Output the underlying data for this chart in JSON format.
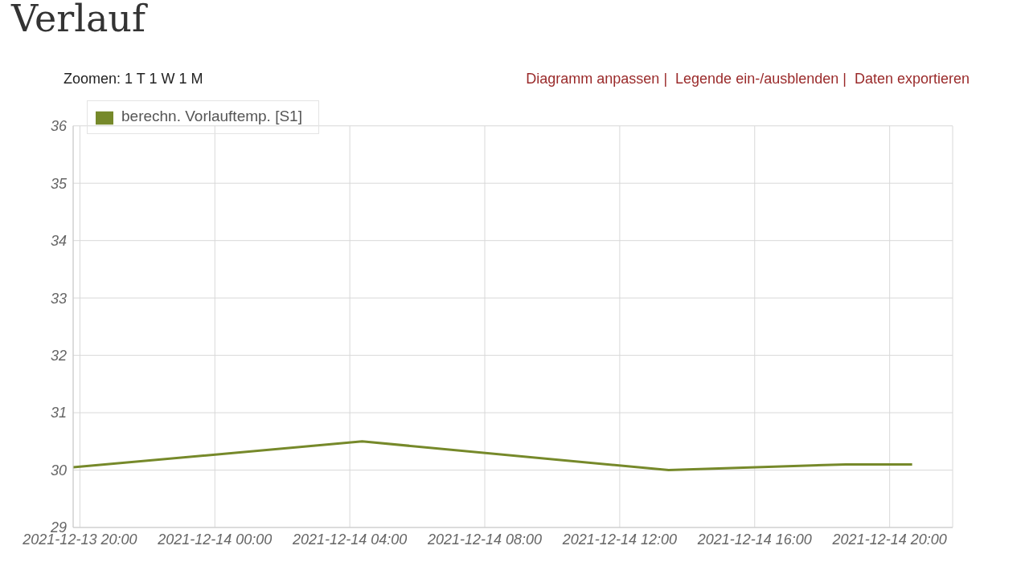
{
  "chart_data": {
    "type": "line",
    "title": "Verlauf",
    "annotations": [
      "Zoomen: 1 T 1 W 1 M",
      "Diagramm anpassen |  Legende ein-/ausblenden |  Daten exportieren"
    ],
    "x": [
      "2021-12-13T19:48",
      "2021-12-14T04:22",
      "2021-12-14T13:27",
      "2021-12-14T18:42",
      "2021-12-14T20:40"
    ],
    "series": [
      {
        "name": "berechn. Vorlauftemp. [S1]",
        "color": "#76892a",
        "values": [
          30.05,
          30.5,
          30.0,
          30.1,
          30.1
        ]
      }
    ],
    "xlim": [
      "2021-12-13T19:48",
      "2021-12-14T21:52"
    ],
    "xticks": [
      {
        "value": "2021-12-13T20:00",
        "label": "2021-12-13 20:00"
      },
      {
        "value": "2021-12-14T00:00",
        "label": "2021-12-14 00:00"
      },
      {
        "value": "2021-12-14T04:00",
        "label": "2021-12-14 04:00"
      },
      {
        "value": "2021-12-14T08:00",
        "label": "2021-12-14 08:00"
      },
      {
        "value": "2021-12-14T12:00",
        "label": "2021-12-14 12:00"
      },
      {
        "value": "2021-12-14T16:00",
        "label": "2021-12-14 16:00"
      },
      {
        "value": "2021-12-14T20:00",
        "label": "2021-12-14 20:00"
      }
    ],
    "ylim": [
      29,
      36
    ],
    "yticks": [
      29,
      30,
      31,
      32,
      33,
      34,
      35,
      36
    ],
    "grid": true,
    "legend": "top left",
    "marker": "none",
    "line_style": "solid"
  }
}
